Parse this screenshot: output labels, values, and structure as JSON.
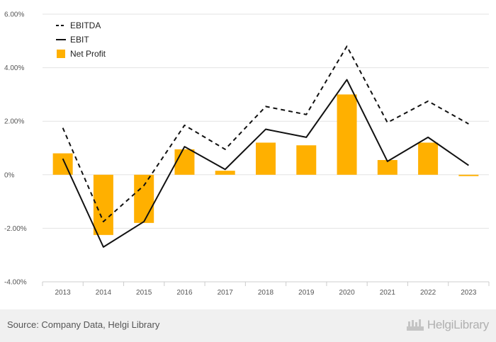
{
  "chart_data": {
    "type": "bar",
    "categories": [
      "2013",
      "2014",
      "2015",
      "2016",
      "2017",
      "2018",
      "2019",
      "2020",
      "2021",
      "2022",
      "2023"
    ],
    "series": [
      {
        "name": "EBITDA",
        "kind": "line",
        "style": "dashed",
        "color": "#111111",
        "values": [
          1.75,
          -1.75,
          -0.4,
          1.85,
          0.95,
          2.55,
          2.25,
          4.8,
          1.95,
          2.75,
          1.9
        ]
      },
      {
        "name": "EBIT",
        "kind": "line",
        "style": "solid",
        "color": "#111111",
        "values": [
          0.6,
          -2.7,
          -1.75,
          1.05,
          0.2,
          1.7,
          1.4,
          3.55,
          0.5,
          1.4,
          0.35
        ]
      },
      {
        "name": "Net Profit",
        "kind": "bar",
        "color": "#FFB000",
        "values": [
          0.8,
          -2.25,
          -1.8,
          0.95,
          0.15,
          1.2,
          1.1,
          3.0,
          0.55,
          1.2,
          -0.05
        ]
      }
    ],
    "yticks": [
      6,
      4,
      2,
      0,
      -2,
      -4
    ],
    "ytick_labels": [
      "6.00%",
      "4.00%",
      "2.00%",
      "0%",
      "-2.00%",
      "-4.00%"
    ],
    "ylim": [
      -4,
      6
    ],
    "grid": true,
    "legend_position": "top-left"
  },
  "footer": {
    "source": "Source: Company Data, Helgi Library",
    "brand": "HelgiLibrary"
  }
}
